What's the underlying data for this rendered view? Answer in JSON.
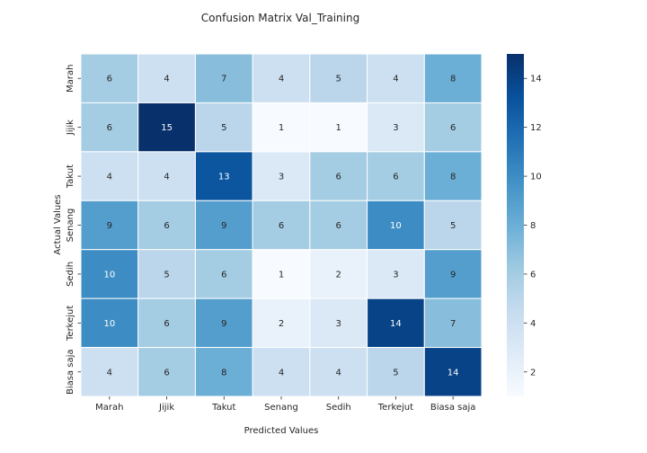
{
  "chart_data": {
    "type": "heatmap",
    "title": "Confusion Matrix Val_Training",
    "xlabel": "Predicted Values",
    "ylabel": "Actual Values",
    "x_categories": [
      "Marah",
      "Jijik",
      "Takut",
      "Senang",
      "Sedih",
      "Terkejut",
      "Biasa saja"
    ],
    "y_categories": [
      "Marah",
      "Jijik",
      "Takut",
      "Senang",
      "Sedih",
      "Terkejut",
      "Biasa saja"
    ],
    "values": [
      [
        6,
        4,
        7,
        4,
        5,
        4,
        8
      ],
      [
        6,
        15,
        5,
        1,
        1,
        3,
        6
      ],
      [
        4,
        4,
        13,
        3,
        6,
        6,
        8
      ],
      [
        9,
        6,
        9,
        6,
        6,
        10,
        5
      ],
      [
        10,
        5,
        6,
        1,
        2,
        3,
        9
      ],
      [
        10,
        6,
        9,
        2,
        3,
        14,
        7
      ],
      [
        4,
        6,
        8,
        4,
        4,
        5,
        14
      ]
    ],
    "colormap": "Blues",
    "color_range": [
      1,
      15
    ],
    "colorbar_ticks": [
      2,
      4,
      6,
      8,
      10,
      12,
      14
    ],
    "grid": false
  }
}
